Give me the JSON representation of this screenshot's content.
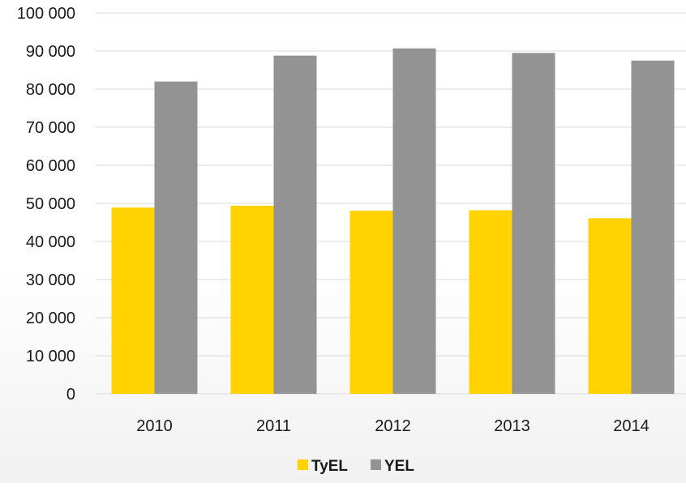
{
  "chart_data": {
    "type": "bar",
    "title": "",
    "xlabel": "",
    "ylabel": "",
    "categories": [
      "2010",
      "2011",
      "2012",
      "2013",
      "2014"
    ],
    "series": [
      {
        "name": "TyEL",
        "color": "#FFD200",
        "values": [
          48900,
          49400,
          48100,
          48200,
          46100
        ]
      },
      {
        "name": "YEL",
        "color": "#939393",
        "values": [
          82000,
          88800,
          90700,
          89500,
          87500
        ]
      }
    ],
    "ylim": [
      0,
      100000
    ],
    "yticks": [
      0,
      10000,
      20000,
      30000,
      40000,
      50000,
      60000,
      70000,
      80000,
      90000,
      100000
    ],
    "ytick_labels": [
      "0",
      "10 000",
      "20 000",
      "30 000",
      "40 000",
      "50 000",
      "60 000",
      "70 000",
      "80 000",
      "90 000",
      "100 000"
    ],
    "grid": true,
    "legend": "bottom-center"
  }
}
